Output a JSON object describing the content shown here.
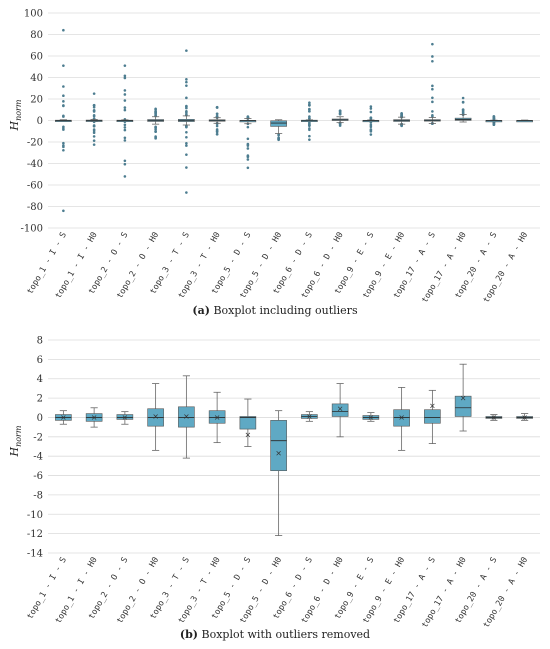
{
  "chart_data": [
    {
      "type": "boxplot",
      "ylabel": "H_norm",
      "ylabel_main": "H",
      "ylabel_sub": "norm",
      "ylim": [
        -100,
        100
      ],
      "yticks": [
        -100,
        -80,
        -60,
        -40,
        -20,
        0,
        20,
        40,
        60,
        80,
        100
      ],
      "grid": true,
      "box_color": "#5fa9c4",
      "categories": [
        "topo_1 - I - S",
        "topo_1 - I - H0",
        "topo_2 - O - S",
        "topo_2 - O - H0",
        "topo_3 - T - S",
        "topo_3 - T - H0",
        "topo_5 - D - S",
        "topo_5 - D - H0",
        "topo_6 - D - S",
        "topo_6 - D - H0",
        "topo_9 - E - S",
        "topo_9 - E - H0",
        "topo_17 - A - S",
        "topo_17 - A - H0",
        "topo_20 - A - S",
        "topo_20 - A - H0"
      ],
      "series": [
        {
          "whisker_low": -0.7,
          "q1": -0.3,
          "median": 0,
          "q3": 0.3,
          "whisker_high": 0.7,
          "outliers_low": -38,
          "outliers_high": 36,
          "extreme_outliers": [
            84,
            51,
            -84
          ]
        },
        {
          "whisker_low": -1.0,
          "q1": -0.4,
          "median": 0,
          "q3": 0.4,
          "whisker_high": 1.0,
          "outliers_low": -26,
          "outliers_high": 16,
          "extreme_outliers": [
            25
          ]
        },
        {
          "whisker_low": -0.7,
          "q1": -0.2,
          "median": 0,
          "q3": 0.3,
          "whisker_high": 0.6,
          "outliers_low": -46,
          "outliers_high": 46,
          "extreme_outliers": [
            51,
            -52
          ]
        },
        {
          "whisker_low": -3.4,
          "q1": -0.9,
          "median": 0,
          "q3": 0.9,
          "whisker_high": 3.5,
          "outliers_low": -18,
          "outliers_high": 17,
          "extreme_outliers": []
        },
        {
          "whisker_low": -4.2,
          "q1": -1.0,
          "median": 0,
          "q3": 1.1,
          "whisker_high": 4.3,
          "outliers_low": -44,
          "outliers_high": 43,
          "extreme_outliers": [
            65,
            -67
          ]
        },
        {
          "whisker_low": -2.6,
          "q1": -0.6,
          "median": 0,
          "q3": 0.7,
          "whisker_high": 2.6,
          "outliers_low": -15,
          "outliers_high": 14,
          "extreme_outliers": []
        },
        {
          "whisker_low": -3.0,
          "q1": -1.2,
          "median": 0,
          "q3": 0.1,
          "whisker_high": 1.9,
          "outliers_low": -38,
          "outliers_high": 4,
          "extreme_outliers": [
            -44
          ]
        },
        {
          "whisker_low": -12.2,
          "q1": -5.5,
          "median": -2.4,
          "q3": -0.3,
          "whisker_high": 0.7,
          "outliers_low": -18,
          "outliers_high": 1,
          "extreme_outliers": []
        },
        {
          "whisker_low": -0.4,
          "q1": -0.1,
          "median": 0.1,
          "q3": 0.3,
          "whisker_high": 0.6,
          "outliers_low": -18,
          "outliers_high": 17,
          "extreme_outliers": []
        },
        {
          "whisker_low": -2.0,
          "q1": 0.1,
          "median": 0.6,
          "q3": 1.4,
          "whisker_high": 3.5,
          "outliers_low": -5,
          "outliers_high": 12,
          "extreme_outliers": []
        },
        {
          "whisker_low": -0.4,
          "q1": -0.2,
          "median": 0,
          "q3": 0.2,
          "whisker_high": 0.5,
          "outliers_low": -15,
          "outliers_high": 15,
          "extreme_outliers": []
        },
        {
          "whisker_low": -3.4,
          "q1": -0.9,
          "median": 0,
          "q3": 0.8,
          "whisker_high": 3.1,
          "outliers_low": -5,
          "outliers_high": 7,
          "extreme_outliers": []
        },
        {
          "whisker_low": -2.7,
          "q1": -0.6,
          "median": 0,
          "q3": 0.8,
          "whisker_high": 2.8,
          "outliers_low": -3,
          "outliers_high": 62,
          "extreme_outliers": [
            71
          ]
        },
        {
          "whisker_low": -1.4,
          "q1": 0.1,
          "median": 1.0,
          "q3": 2.2,
          "whisker_high": 5.5,
          "outliers_low": -1,
          "outliers_high": 23,
          "extreme_outliers": []
        },
        {
          "whisker_low": -0.3,
          "q1": -0.1,
          "median": 0,
          "q3": 0.1,
          "whisker_high": 0.3,
          "outliers_low": -4,
          "outliers_high": 4,
          "extreme_outliers": []
        },
        {
          "whisker_low": -0.3,
          "q1": -0.1,
          "median": 0,
          "q3": 0.1,
          "whisker_high": 0.4,
          "outliers_low": -1,
          "outliers_high": 1,
          "extreme_outliers": []
        }
      ]
    },
    {
      "type": "boxplot",
      "ylabel": "H_norm",
      "ylabel_main": "H",
      "ylabel_sub": "norm",
      "ylim": [
        -14,
        8
      ],
      "yticks": [
        -14,
        -12,
        -10,
        -8,
        -6,
        -4,
        -2,
        0,
        2,
        4,
        6,
        8
      ],
      "grid": true,
      "box_color": "#5fa9c4",
      "categories": [
        "topo_1 - I - S",
        "topo_1 - I - H0",
        "topo_2 - O - S",
        "topo_2 - O - H0",
        "topo_3 - T - S",
        "topo_3 - T - H0",
        "topo_5 - D - S",
        "topo_5 - D - H0",
        "topo_6 - D - S",
        "topo_6 - D - H0",
        "topo_9 - E - S",
        "topo_9 - E - H0",
        "topo_17 - A - S",
        "topo_17 - A - H0",
        "topo_20 - A - S",
        "topo_20 - A - H0"
      ],
      "series": [
        {
          "whisker_low": -0.7,
          "q1": -0.3,
          "median": 0,
          "q3": 0.3,
          "whisker_high": 0.7,
          "mean": 0
        },
        {
          "whisker_low": -1.0,
          "q1": -0.4,
          "median": 0,
          "q3": 0.4,
          "whisker_high": 1.0,
          "mean": 0
        },
        {
          "whisker_low": -0.7,
          "q1": -0.2,
          "median": 0,
          "q3": 0.3,
          "whisker_high": 0.6,
          "mean": 0
        },
        {
          "whisker_low": -3.4,
          "q1": -0.9,
          "median": 0,
          "q3": 0.9,
          "whisker_high": 3.5,
          "mean": 0.1
        },
        {
          "whisker_low": -4.2,
          "q1": -1.0,
          "median": 0,
          "q3": 1.1,
          "whisker_high": 4.3,
          "mean": 0.1
        },
        {
          "whisker_low": -2.6,
          "q1": -0.6,
          "median": 0,
          "q3": 0.7,
          "whisker_high": 2.6,
          "mean": 0.0
        },
        {
          "whisker_low": -3.0,
          "q1": -1.2,
          "median": 0,
          "q3": 0.1,
          "whisker_high": 1.9,
          "mean": -1.8
        },
        {
          "whisker_low": -12.2,
          "q1": -5.5,
          "median": -2.4,
          "q3": -0.3,
          "whisker_high": 0.7,
          "mean": -3.7
        },
        {
          "whisker_low": -0.4,
          "q1": -0.1,
          "median": 0.1,
          "q3": 0.3,
          "whisker_high": 0.6,
          "mean": 0.1
        },
        {
          "whisker_low": -2.0,
          "q1": 0.1,
          "median": 0.6,
          "q3": 1.4,
          "whisker_high": 3.5,
          "mean": 0.9
        },
        {
          "whisker_low": -0.4,
          "q1": -0.2,
          "median": 0,
          "q3": 0.2,
          "whisker_high": 0.5,
          "mean": 0
        },
        {
          "whisker_low": -3.4,
          "q1": -0.9,
          "median": 0,
          "q3": 0.8,
          "whisker_high": 3.1,
          "mean": 0
        },
        {
          "whisker_low": -2.7,
          "q1": -0.6,
          "median": 0,
          "q3": 0.8,
          "whisker_high": 2.8,
          "mean": 1.2
        },
        {
          "whisker_low": -1.4,
          "q1": 0.1,
          "median": 1.0,
          "q3": 2.2,
          "whisker_high": 5.5,
          "mean": 2.0
        },
        {
          "whisker_low": -0.3,
          "q1": -0.1,
          "median": 0,
          "q3": 0.1,
          "whisker_high": 0.3,
          "mean": 0
        },
        {
          "whisker_low": -0.3,
          "q1": -0.1,
          "median": 0,
          "q3": 0.1,
          "whisker_high": 0.4,
          "mean": 0
        }
      ]
    }
  ],
  "captions": {
    "a_label": "(a)",
    "a_text": " Boxplot including outliers",
    "b_label": "(b)",
    "b_text": " Boxplot with outliers removed"
  }
}
